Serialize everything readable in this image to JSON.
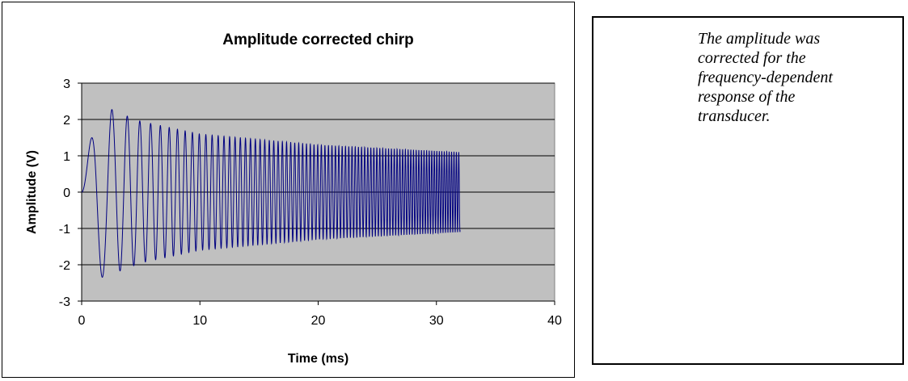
{
  "chart_data": {
    "type": "line",
    "title": "Amplitude corrected chirp",
    "xlabel": "Time (ms)",
    "ylabel": "Amplitude (V)",
    "xlim": [
      0,
      40
    ],
    "ylim": [
      -3,
      3
    ],
    "xticks": [
      0,
      10,
      20,
      30,
      40
    ],
    "yticks": [
      -3,
      -2,
      -1,
      0,
      1,
      2,
      3
    ],
    "x_tick_labels": [
      "0",
      "10",
      "20",
      "30",
      "40"
    ],
    "y_tick_labels": [
      "-3",
      "-2",
      "-1",
      "0",
      "1",
      "2",
      "3"
    ],
    "grid": "horizontal",
    "legend": "none",
    "series": [
      {
        "signal": "linear chirp",
        "start_ms": 0,
        "end_ms": 32,
        "frequency_start_khz": 0.3,
        "frequency_end_khz": 5.0,
        "envelope": {
          "x_ms": [
            0,
            1.3,
            2.1,
            3,
            5,
            10,
            20,
            32
          ],
          "upper_v": [
            0,
            2.45,
            2.35,
            2.2,
            1.95,
            1.6,
            1.3,
            1.1
          ],
          "lower_v": [
            0,
            -2.4,
            -2.3,
            -2.2,
            -1.95,
            -1.6,
            -1.3,
            -1.1
          ]
        }
      }
    ],
    "colors": {
      "plot_background": "#c0c0c0",
      "series_line": "#000080",
      "gridline": "#000000"
    }
  },
  "note": {
    "lines": [
      "The amplitude was",
      "corrected for the",
      "frequency-dependent",
      "response of the",
      "transducer."
    ]
  }
}
